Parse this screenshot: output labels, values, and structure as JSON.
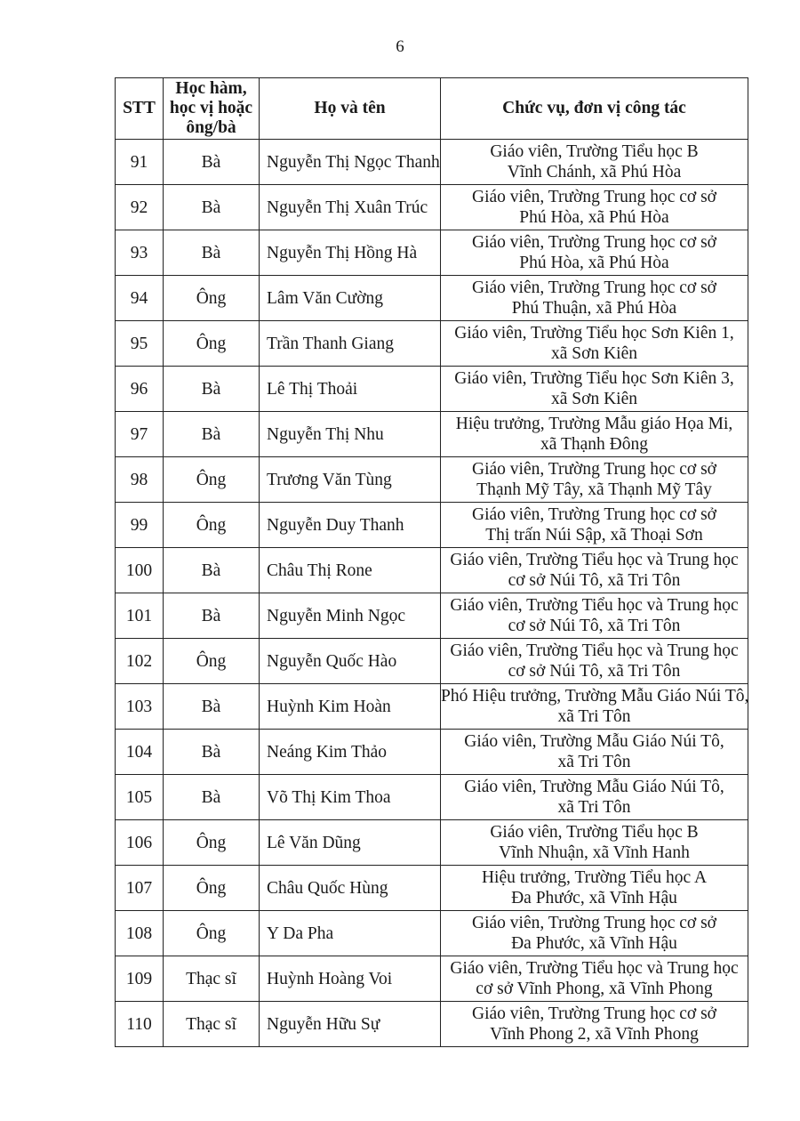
{
  "page_number": "6",
  "headers": [
    "STT",
    "Học hàm, học vị hoặc ông/bà",
    "Họ và tên",
    "Chức vụ, đơn vị công tác"
  ],
  "rows": [
    {
      "stt": "91",
      "title": "Bà",
      "name": "Nguyễn Thị Ngọc Thanh",
      "line1": "Giáo viên, Trường Tiểu học B",
      "line2": "Vĩnh Chánh, xã Phú Hòa"
    },
    {
      "stt": "92",
      "title": "Bà",
      "name": "Nguyễn Thị Xuân Trúc",
      "line1": "Giáo viên, Trường Trung học cơ sở",
      "line2": "Phú Hòa, xã Phú Hòa"
    },
    {
      "stt": "93",
      "title": "Bà",
      "name": "Nguyễn Thị Hồng Hà",
      "line1": "Giáo viên, Trường Trung học cơ sở",
      "line2": "Phú Hòa, xã Phú Hòa"
    },
    {
      "stt": "94",
      "title": "Ông",
      "name": "Lâm Văn Cường",
      "line1": "Giáo viên, Trường Trung học cơ sở",
      "line2": "Phú Thuận, xã Phú Hòa"
    },
    {
      "stt": "95",
      "title": "Ông",
      "name": "Trần Thanh Giang",
      "line1": "Giáo viên, Trường Tiểu học Sơn Kiên 1,",
      "line2": "xã Sơn Kiên"
    },
    {
      "stt": "96",
      "title": "Bà",
      "name": "Lê Thị Thoải",
      "line1": "Giáo viên, Trường Tiểu học Sơn Kiên 3,",
      "line2": "xã Sơn Kiên"
    },
    {
      "stt": "97",
      "title": "Bà",
      "name": "Nguyễn Thị Nhu",
      "line1": "Hiệu trưởng, Trường Mẫu giáo Họa Mi,",
      "line2": "xã Thạnh Đông"
    },
    {
      "stt": "98",
      "title": "Ông",
      "name": "Trương Văn Tùng",
      "line1": "Giáo viên, Trường Trung học cơ sở",
      "line2": "Thạnh Mỹ Tây, xã Thạnh Mỹ Tây"
    },
    {
      "stt": "99",
      "title": "Ông",
      "name": "Nguyễn Duy Thanh",
      "line1": "Giáo viên, Trường Trung học cơ sở",
      "line2": "Thị trấn Núi Sập, xã Thoại Sơn"
    },
    {
      "stt": "100",
      "title": "Bà",
      "name": "Châu Thị Rone",
      "line1": "Giáo viên, Trường Tiểu học và Trung học",
      "line2": "cơ sở Núi Tô, xã Tri Tôn"
    },
    {
      "stt": "101",
      "title": "Bà",
      "name": "Nguyễn Minh Ngọc",
      "line1": "Giáo viên, Trường Tiểu học và Trung học",
      "line2": "cơ sở Núi Tô, xã Tri Tôn"
    },
    {
      "stt": "102",
      "title": "Ông",
      "name": "Nguyễn Quốc Hào",
      "line1": "Giáo viên, Trường Tiểu học và Trung học",
      "line2": "cơ sở Núi Tô, xã Tri Tôn"
    },
    {
      "stt": "103",
      "title": "Bà",
      "name": "Huỳnh Kim Hoàn",
      "line1": "Phó Hiệu trưởng, Trường Mẫu Giáo Núi Tô,",
      "line2": "xã Tri Tôn"
    },
    {
      "stt": "104",
      "title": "Bà",
      "name": "Neáng Kim Thảo",
      "line1": "Giáo viên, Trường Mẫu Giáo Núi Tô,",
      "line2": "xã Tri Tôn"
    },
    {
      "stt": "105",
      "title": "Bà",
      "name": "Võ Thị Kim Thoa",
      "line1": "Giáo viên, Trường Mẫu Giáo Núi Tô,",
      "line2": "xã Tri Tôn"
    },
    {
      "stt": "106",
      "title": "Ông",
      "name": "Lê Văn Dũng",
      "line1": "Giáo viên, Trường Tiểu học B",
      "line2": "Vĩnh Nhuận, xã Vĩnh Hanh"
    },
    {
      "stt": "107",
      "title": "Ông",
      "name": "Châu Quốc Hùng",
      "line1": "Hiệu trưởng, Trường Tiểu học A",
      "line2": "Đa Phước, xã Vĩnh Hậu"
    },
    {
      "stt": "108",
      "title": "Ông",
      "name": "Y Da Pha",
      "line1": "Giáo viên, Trường Trung học cơ sở",
      "line2": "Đa Phước, xã Vĩnh Hậu"
    },
    {
      "stt": "109",
      "title": "Thạc sĩ",
      "name": "Huỳnh Hoàng Voi",
      "line1": "Giáo viên, Trường Tiểu học và Trung học",
      "line2": "cơ sở Vĩnh Phong, xã Vĩnh Phong"
    },
    {
      "stt": "110",
      "title": "Thạc sĩ",
      "name": "Nguyễn Hữu Sự",
      "line1": "Giáo viên, Trường Trung học cơ sở",
      "line2": "Vĩnh Phong 2, xã Vĩnh Phong"
    }
  ]
}
